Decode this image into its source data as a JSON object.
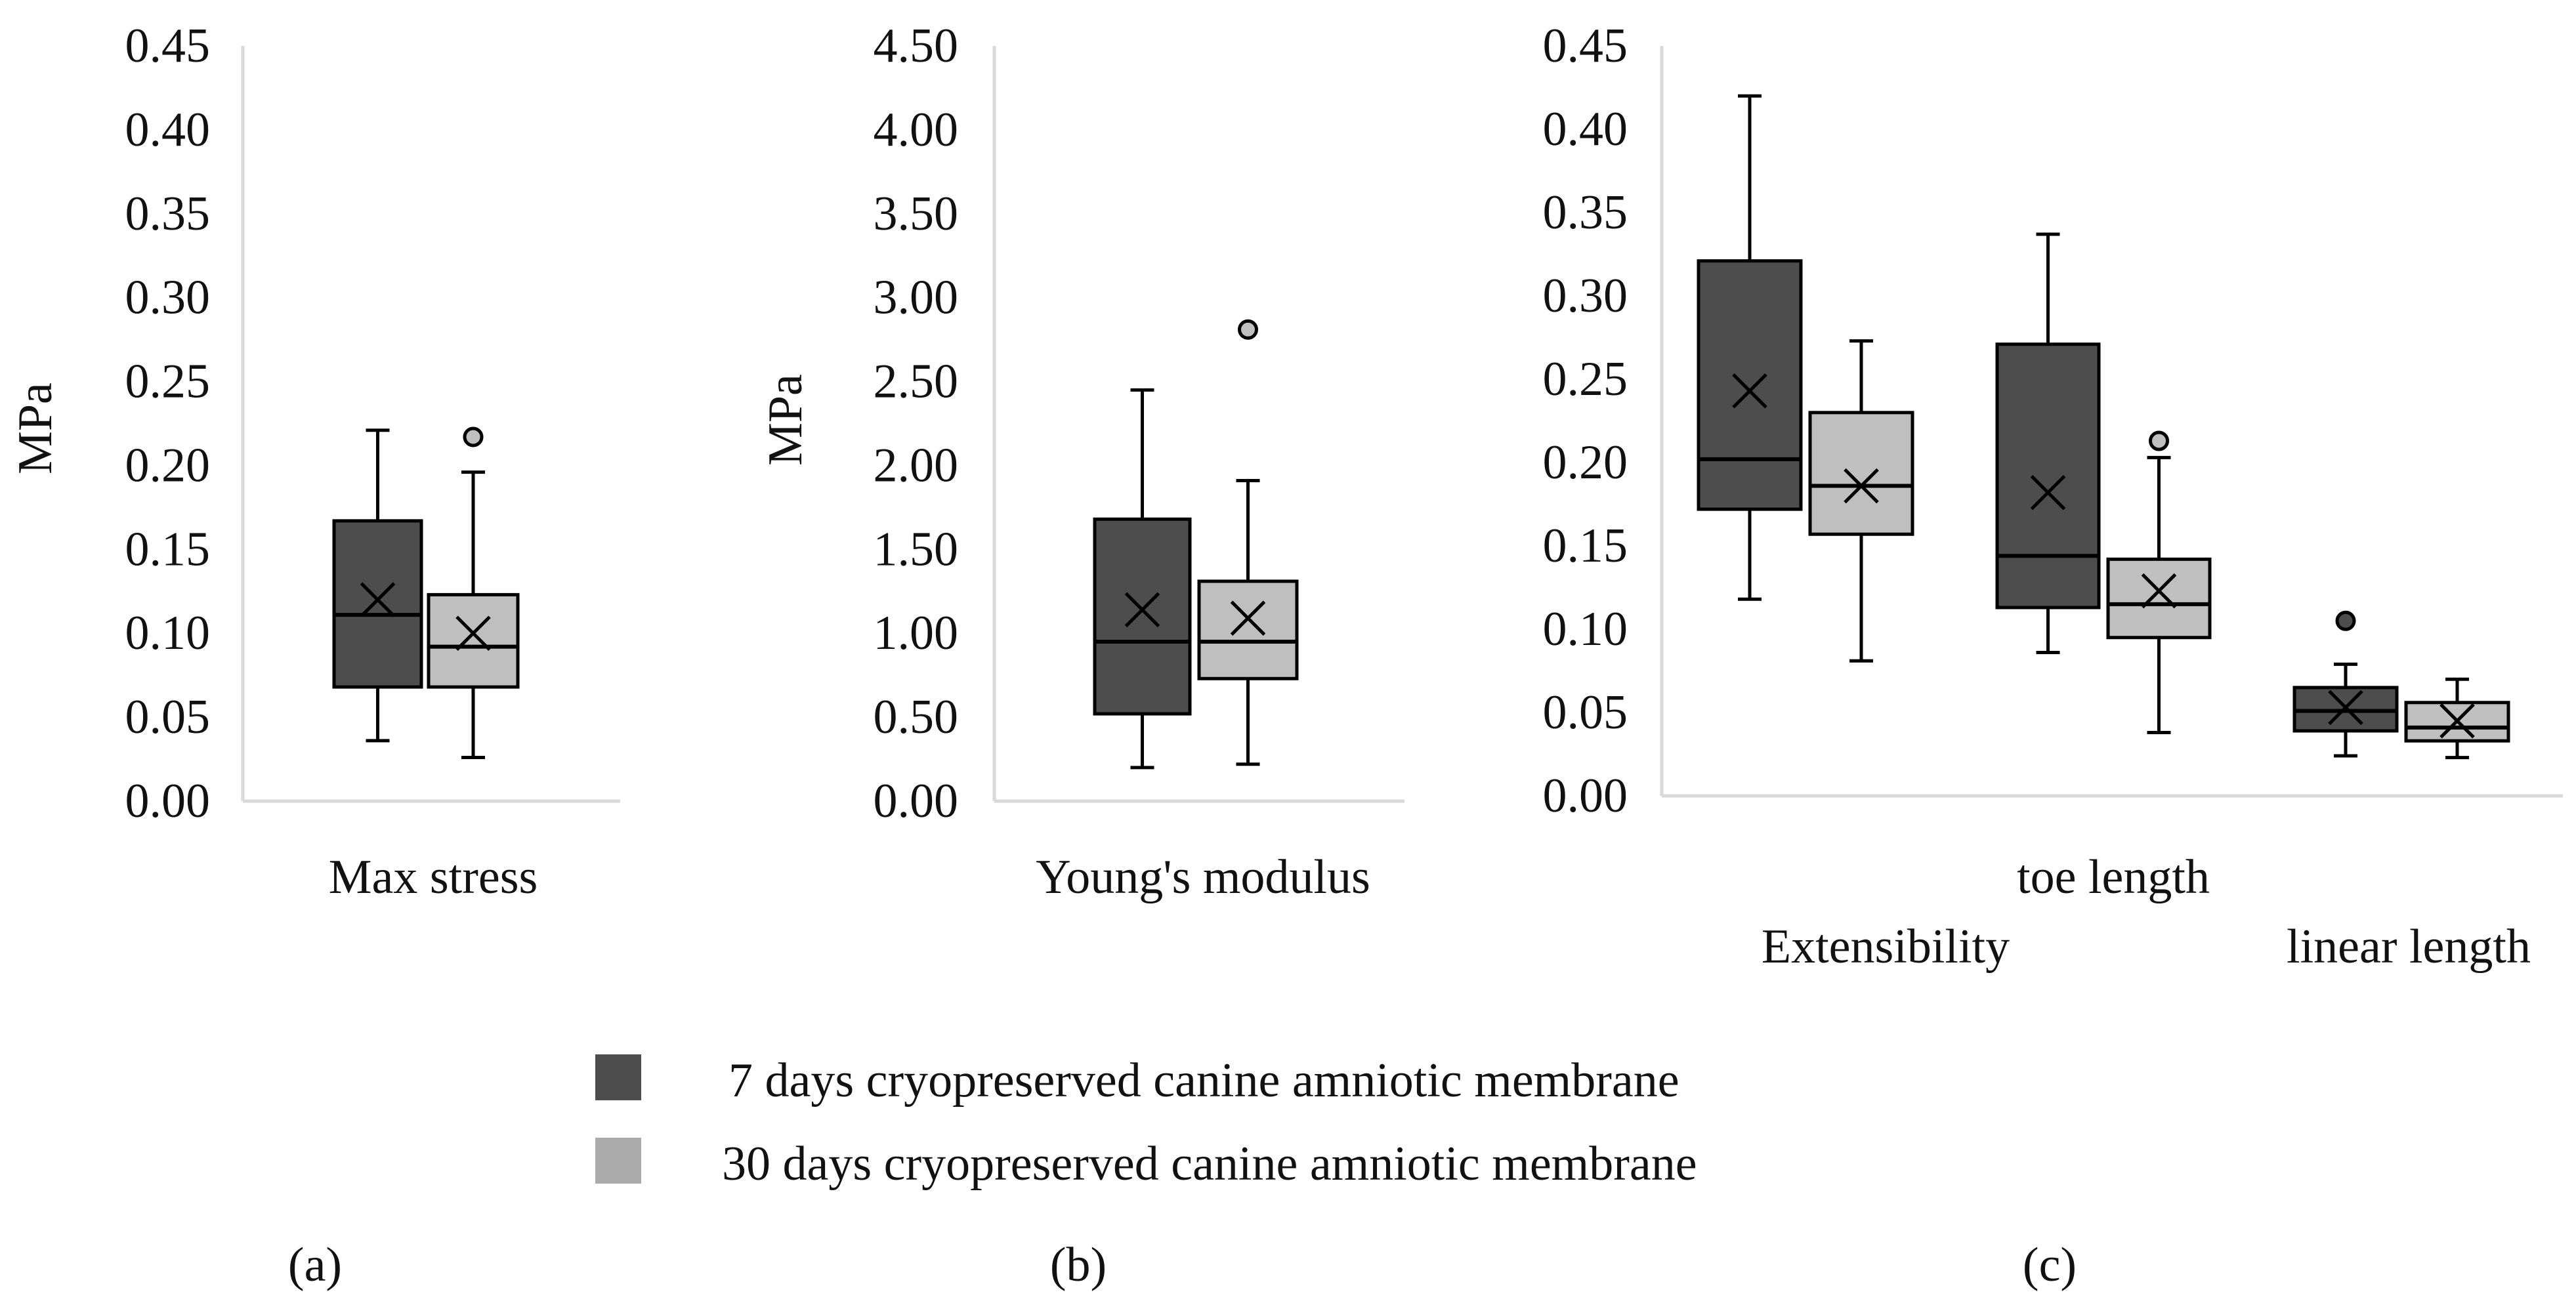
{
  "chart_data": [
    {
      "type": "box",
      "panel_label": "(a)",
      "ylabel": "MPa",
      "ylim": [
        0,
        0.45
      ],
      "yticks": [
        "0.00",
        "0.05",
        "0.10",
        "0.15",
        "0.20",
        "0.25",
        "0.30",
        "0.35",
        "0.40",
        "0.45"
      ],
      "categories": [
        {
          "name": "Max stress",
          "boxes": [
            {
              "series": "7 days cryopreserved canine amniotic membrane",
              "min": 0.036,
              "q1": 0.068,
              "median": 0.111,
              "q3": 0.167,
              "max": 0.221,
              "mean": 0.12,
              "outliers": []
            },
            {
              "series": "30 days cryopreserved canine amniotic membrane",
              "min": 0.026,
              "q1": 0.068,
              "median": 0.092,
              "q3": 0.123,
              "max": 0.196,
              "mean": 0.1,
              "outliers": [
                0.217
              ]
            }
          ]
        }
      ]
    },
    {
      "type": "box",
      "panel_label": "(b)",
      "ylabel": "MPa",
      "ylim": [
        0,
        4.5
      ],
      "yticks": [
        "0.00",
        "0.50",
        "1.00",
        "1.50",
        "2.00",
        "2.50",
        "3.00",
        "3.50",
        "4.00",
        "4.50"
      ],
      "categories": [
        {
          "name": "Young's modulus",
          "boxes": [
            {
              "series": "7 days cryopreserved canine amniotic membrane",
              "min": 0.2,
              "q1": 0.52,
              "median": 0.95,
              "q3": 1.68,
              "max": 2.45,
              "mean": 1.14,
              "outliers": []
            },
            {
              "series": "30 days cryopreserved canine amniotic membrane",
              "min": 0.22,
              "q1": 0.73,
              "median": 0.95,
              "q3": 1.31,
              "max": 1.91,
              "mean": 1.09,
              "outliers": [
                2.81
              ]
            }
          ]
        }
      ]
    },
    {
      "type": "box",
      "panel_label": "(c)",
      "ylabel": "",
      "ylim": [
        0,
        0.45
      ],
      "yticks": [
        "0.00",
        "0.05",
        "0.10",
        "0.15",
        "0.20",
        "0.25",
        "0.30",
        "0.35",
        "0.40",
        "0.45"
      ],
      "categories": [
        {
          "name": "Extensibility",
          "boxes": [
            {
              "series": "7 days cryopreserved canine amniotic membrane",
              "min": 0.118,
              "q1": 0.172,
              "median": 0.202,
              "q3": 0.321,
              "max": 0.42,
              "mean": 0.243,
              "outliers": []
            },
            {
              "series": "30 days cryopreserved canine amniotic membrane",
              "min": 0.081,
              "q1": 0.157,
              "median": 0.186,
              "q3": 0.23,
              "max": 0.273,
              "mean": 0.186,
              "outliers": []
            }
          ]
        },
        {
          "name": "toe length",
          "boxes": [
            {
              "series": "7 days cryopreserved canine amniotic membrane",
              "min": 0.086,
              "q1": 0.113,
              "median": 0.144,
              "q3": 0.271,
              "max": 0.337,
              "mean": 0.182,
              "outliers": []
            },
            {
              "series": "30 days cryopreserved canine amniotic membrane",
              "min": 0.038,
              "q1": 0.095,
              "median": 0.115,
              "q3": 0.142,
              "max": 0.203,
              "mean": 0.123,
              "outliers": [
                0.213
              ]
            }
          ]
        },
        {
          "name": "linear length",
          "boxes": [
            {
              "series": "7 days cryopreserved canine amniotic membrane",
              "min": 0.024,
              "q1": 0.039,
              "median": 0.051,
              "q3": 0.065,
              "max": 0.079,
              "mean": 0.053,
              "outliers": [
                0.105
              ]
            },
            {
              "series": "30 days cryopreserved canine amniotic membrane",
              "min": 0.023,
              "q1": 0.033,
              "median": 0.041,
              "q3": 0.056,
              "max": 0.07,
              "mean": 0.045,
              "outliers": []
            }
          ]
        }
      ]
    }
  ],
  "legend": [
    {
      "label": "7 days cryopreserved canine amniotic membrane",
      "color": "#4d4d4d"
    },
    {
      "label": "30 days cryopreserved canine amniotic membrane",
      "color": "#ababab"
    }
  ],
  "colors": {
    "dark_box": "#4d4d4d",
    "light_box": "#bfbfbf",
    "axis": "#d9d9d9",
    "stroke": "#000000"
  }
}
